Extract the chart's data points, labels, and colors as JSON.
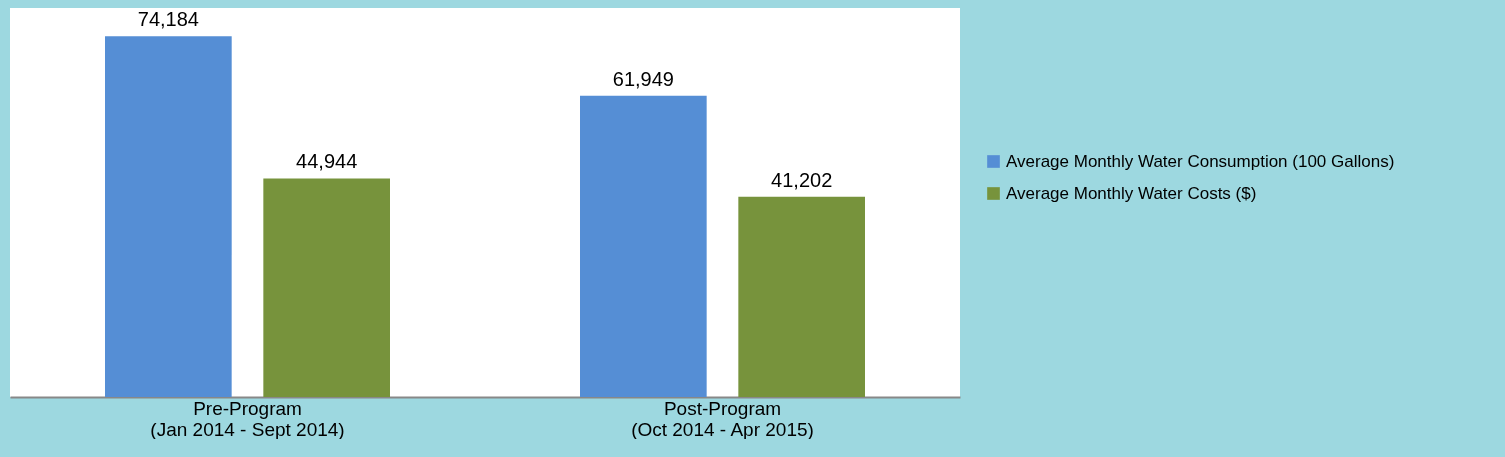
{
  "chart_data": {
    "type": "bar",
    "categories": [
      "Pre-Program\n(Jan 2014 - Sept 2014)",
      "Post-Program\n(Oct 2014 - Apr 2015)"
    ],
    "series": [
      {
        "name": "Average Monthly Water Consumption (100 Gallons)",
        "color": "#558ed5",
        "values": [
          74184,
          61949
        ],
        "value_labels": [
          "74,184",
          "61,949"
        ]
      },
      {
        "name": "Average Monthly Water Costs ($)",
        "color": "#77933c",
        "values": [
          44944,
          41202
        ],
        "value_labels": [
          "44,944",
          "41,202"
        ]
      }
    ],
    "tick_labels": "x",
    "legend": "right",
    "grid": false
  }
}
